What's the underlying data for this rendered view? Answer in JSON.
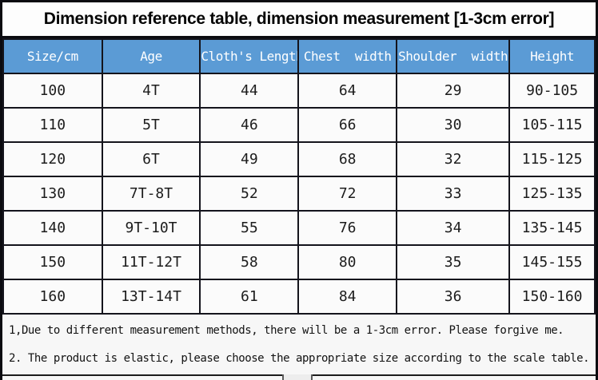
{
  "title": "Dimension reference table, dimension measurement [1-3cm error]",
  "table": {
    "headers": [
      "Size/cm",
      "Age",
      "Cloth's Length",
      "Chest  width",
      "Shoulder  width",
      "Height"
    ],
    "rows": [
      [
        "100",
        "4T",
        "44",
        "64",
        "29",
        "90-105"
      ],
      [
        "110",
        "5T",
        "46",
        "66",
        "30",
        "105-115"
      ],
      [
        "120",
        "6T",
        "49",
        "68",
        "32",
        "115-125"
      ],
      [
        "130",
        "7T-8T",
        "52",
        "72",
        "33",
        "125-135"
      ],
      [
        "140",
        "9T-10T",
        "55",
        "76",
        "34",
        "135-145"
      ],
      [
        "150",
        "11T-12T",
        "58",
        "80",
        "35",
        "145-155"
      ],
      [
        "160",
        "13T-14T",
        "61",
        "84",
        "36",
        "150-160"
      ]
    ]
  },
  "notes": [
    "1,Due to different measurement methods, there will be a 1-3cm error. Please forgive me.",
    "2. The product is elastic, please choose the appropriate size according to the scale table."
  ],
  "colors": {
    "header_background": "#5B9BD5",
    "header_text": "#FFFFFF",
    "border": "#14141C",
    "body_text": "#1C1C1C",
    "page_background": "#F7F7F7"
  }
}
